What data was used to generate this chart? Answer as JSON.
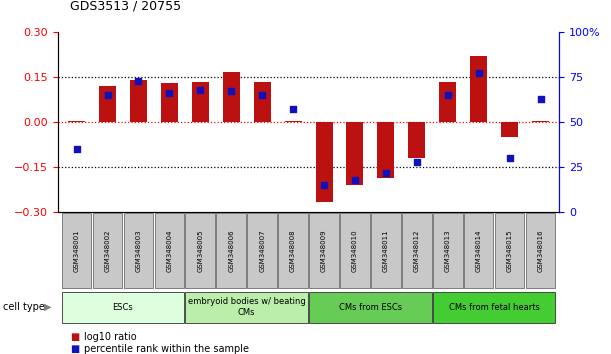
{
  "title": "GDS3513 / 20755",
  "samples": [
    "GSM348001",
    "GSM348002",
    "GSM348003",
    "GSM348004",
    "GSM348005",
    "GSM348006",
    "GSM348007",
    "GSM348008",
    "GSM348009",
    "GSM348010",
    "GSM348011",
    "GSM348012",
    "GSM348013",
    "GSM348014",
    "GSM348015",
    "GSM348016"
  ],
  "log10_ratio": [
    0.005,
    0.12,
    0.14,
    0.13,
    0.135,
    0.165,
    0.135,
    0.005,
    -0.265,
    -0.21,
    -0.185,
    -0.12,
    0.135,
    0.22,
    -0.05,
    0.005
  ],
  "percentile_rank": [
    35,
    65,
    73,
    66,
    68,
    67,
    65,
    57,
    15,
    18,
    22,
    28,
    65,
    77,
    30,
    63
  ],
  "ylim": [
    -0.3,
    0.3
  ],
  "y2lim": [
    0,
    100
  ],
  "yticks": [
    -0.3,
    -0.15,
    0,
    0.15,
    0.3
  ],
  "y2ticks": [
    0,
    25,
    50,
    75,
    100
  ],
  "hlines_dotted": [
    0.15,
    -0.15
  ],
  "hline_red_dotted": 0.0,
  "bar_color": "#bb1111",
  "dot_color": "#1111bb",
  "cell_type_groups": [
    {
      "label": "ESCs",
      "start": 0,
      "end": 3,
      "color": "#ddffdd"
    },
    {
      "label": "embryoid bodies w/ beating\nCMs",
      "start": 4,
      "end": 7,
      "color": "#bbeeaa"
    },
    {
      "label": "CMs from ESCs",
      "start": 8,
      "end": 11,
      "color": "#66cc55"
    },
    {
      "label": "CMs from fetal hearts",
      "start": 12,
      "end": 15,
      "color": "#44cc33"
    }
  ],
  "cell_type_label": "cell type",
  "legend_items": [
    {
      "label": "log10 ratio",
      "color": "#bb1111"
    },
    {
      "label": "percentile rank within the sample",
      "color": "#1111bb"
    }
  ],
  "background_color": "#ffffff"
}
